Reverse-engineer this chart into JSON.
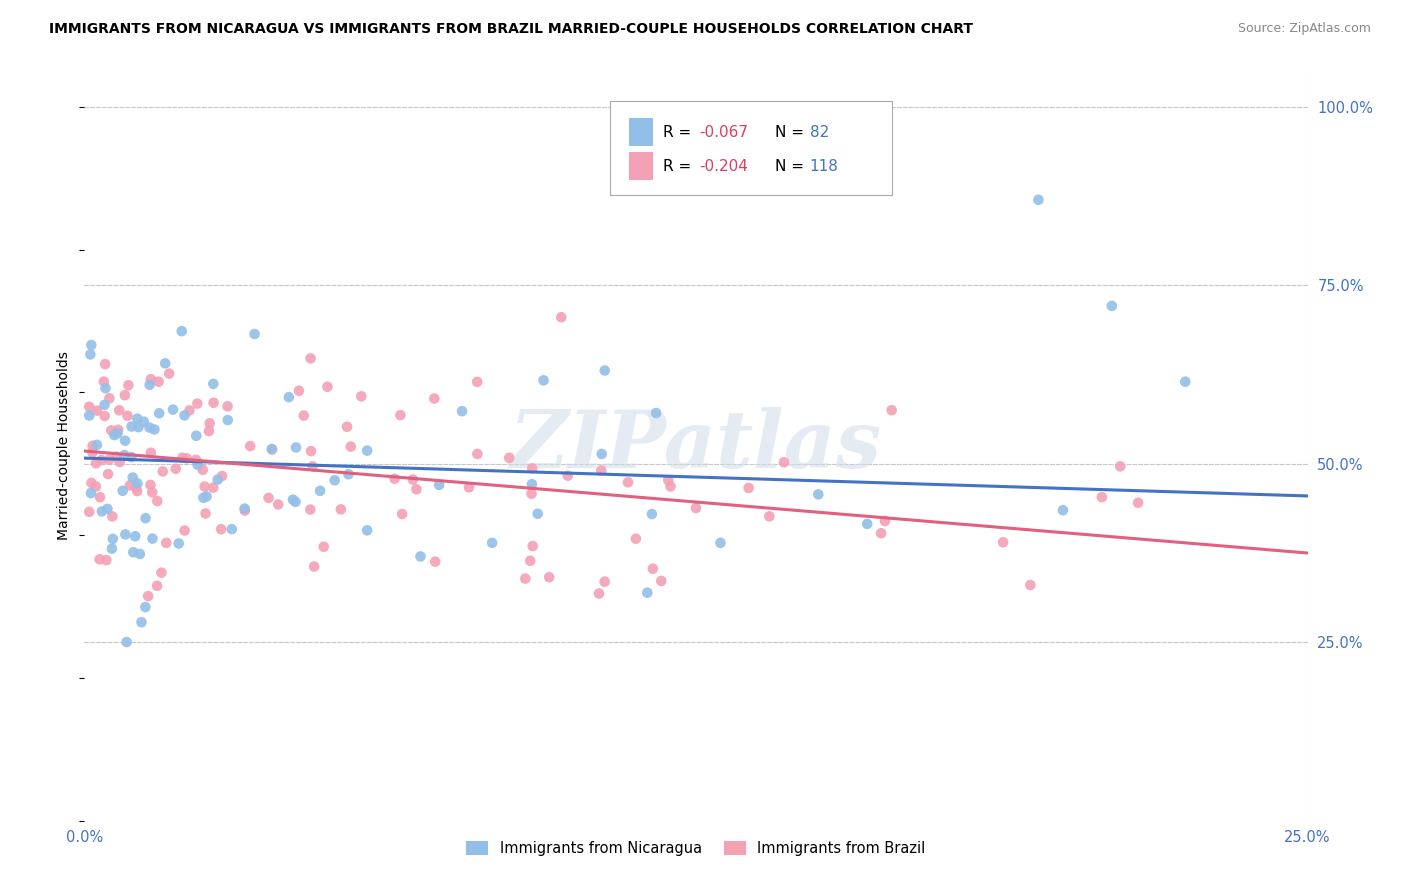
{
  "title": "IMMIGRANTS FROM NICARAGUA VS IMMIGRANTS FROM BRAZIL MARRIED-COUPLE HOUSEHOLDS CORRELATION CHART",
  "source": "Source: ZipAtlas.com",
  "ylabel": "Married-couple Households",
  "series1_label": "Immigrants from Nicaragua",
  "series1_color": "#92bfe8",
  "series2_label": "Immigrants from Brazil",
  "series2_color": "#f4a0b5",
  "trendline1_color": "#4472c4",
  "trendline2_color": "#e06080",
  "watermark": "ZIPatlas",
  "background_color": "#ffffff",
  "grid_color": "#c8c8c8",
  "tick_color": "#4472c4",
  "series1_R": "-0.067",
  "series1_N": "82",
  "series2_R": "-0.204",
  "series2_N": "118",
  "xlim": [
    0.0,
    0.25
  ],
  "ylim": [
    0.0,
    1.05
  ],
  "trendline1_x0": 0.0,
  "trendline1_x1": 0.25,
  "trendline1_y0": 0.508,
  "trendline1_y1": 0.455,
  "trendline2_x0": 0.0,
  "trendline2_x1": 0.25,
  "trendline2_y0": 0.518,
  "trendline2_y1": 0.375
}
